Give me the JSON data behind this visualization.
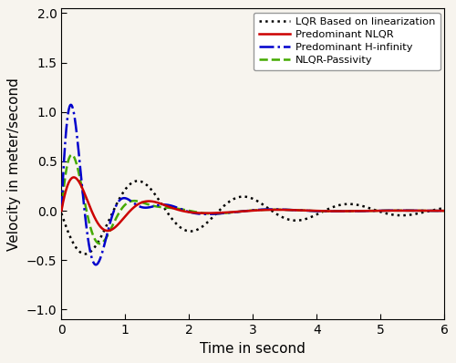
{
  "xlabel": "Time in second",
  "ylabel": "Velocity in meter/second",
  "xlim": [
    0,
    6
  ],
  "ylim": [
    -1.1,
    2.05
  ],
  "yticks": [
    -1.0,
    -0.5,
    0.0,
    0.5,
    1.0,
    1.5,
    2.0
  ],
  "xticks": [
    0,
    1,
    2,
    3,
    4,
    5,
    6
  ],
  "legend": [
    "Predominant NLQR",
    "Predominant H-infinity",
    "NLQR-Passivity",
    "LQR Based on linearization"
  ],
  "line_colors": [
    "#cc0000",
    "#0000cc",
    "#44aa00",
    "#000000"
  ],
  "bg_color": "#f7f4ee",
  "dt": 0.002,
  "t_end": 6.0
}
